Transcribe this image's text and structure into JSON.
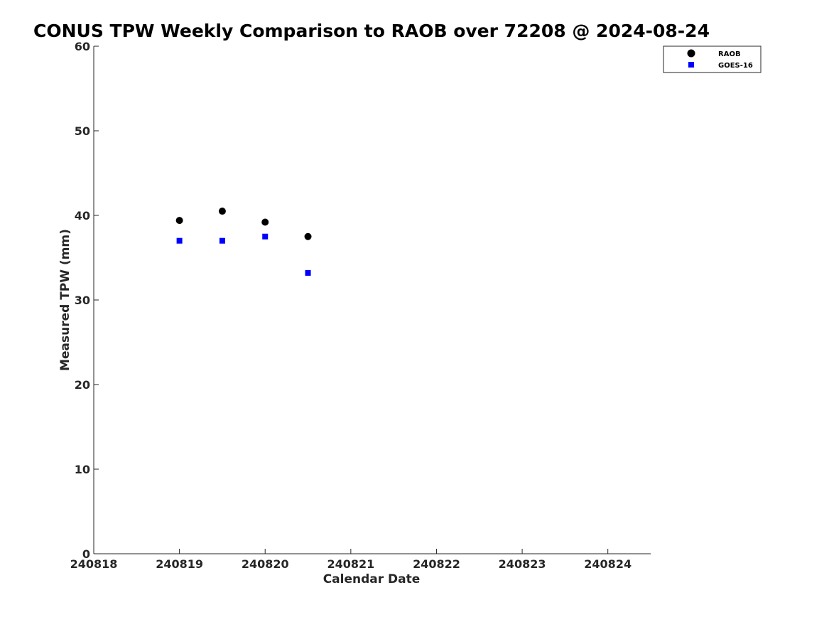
{
  "chart_data": {
    "type": "scatter",
    "title": "CONUS TPW Weekly Comparison to RAOB over 72208 @ 2024-08-24",
    "xlabel": "Calendar Date",
    "ylabel": "Measured TPW (mm)",
    "xlim": [
      240818,
      240824.5
    ],
    "ylim": [
      0,
      60
    ],
    "xticks": [
      240818,
      240819,
      240820,
      240821,
      240822,
      240823,
      240824
    ],
    "xtick_labels": [
      "240818",
      "240819",
      "240820",
      "240821",
      "240822",
      "240823",
      "240824"
    ],
    "yticks": [
      0,
      10,
      20,
      30,
      40,
      50,
      60
    ],
    "ytick_labels": [
      "0",
      "10",
      "20",
      "30",
      "40",
      "50",
      "60"
    ],
    "grid": false,
    "legend_position": "top-right",
    "series": [
      {
        "name": "RAOB",
        "marker": "circle",
        "color": "#000000",
        "x": [
          240819.0,
          240819.5,
          240820.0,
          240820.5
        ],
        "y": [
          39.4,
          40.5,
          39.2,
          37.5
        ]
      },
      {
        "name": "GOES-16",
        "marker": "square",
        "color": "#0000ff",
        "x": [
          240819.0,
          240819.5,
          240820.0,
          240820.5
        ],
        "y": [
          37.0,
          37.0,
          37.5,
          33.2
        ]
      }
    ]
  }
}
